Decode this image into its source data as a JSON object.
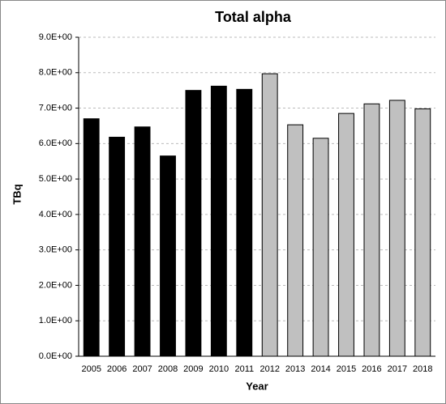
{
  "chart_data": {
    "type": "bar",
    "title": "Total alpha",
    "x_label": "Year",
    "y_label": "TBq",
    "categories": [
      "2005",
      "2006",
      "2007",
      "2008",
      "2009",
      "2010",
      "2011",
      "2012",
      "2013",
      "2014",
      "2015",
      "2016",
      "2017",
      "2018"
    ],
    "values": [
      6.7,
      6.18,
      6.47,
      5.65,
      7.5,
      7.62,
      7.53,
      7.97,
      6.53,
      6.15,
      6.85,
      7.12,
      7.22,
      6.98
    ],
    "colors": [
      "#000000",
      "#000000",
      "#000000",
      "#000000",
      "#000000",
      "#000000",
      "#000000",
      "#c0c0c0",
      "#c0c0c0",
      "#c0c0c0",
      "#c0c0c0",
      "#c0c0c0",
      "#c0c0c0",
      "#c0c0c0"
    ],
    "ylim": [
      0,
      9
    ],
    "yticks": [
      {
        "value": 0,
        "label": "0.0E+00"
      },
      {
        "value": 1,
        "label": "1.0E+00"
      },
      {
        "value": 2,
        "label": "2.0E+00"
      },
      {
        "value": 3,
        "label": "3.0E+00"
      },
      {
        "value": 4,
        "label": "4.0E+00"
      },
      {
        "value": 5,
        "label": "5.0E+00"
      },
      {
        "value": 6,
        "label": "6.0E+00"
      },
      {
        "value": 7,
        "label": "7.0E+00"
      },
      {
        "value": 8,
        "label": "8.0E+00"
      },
      {
        "value": 9,
        "label": "9.0E+00"
      }
    ],
    "grid": true
  }
}
